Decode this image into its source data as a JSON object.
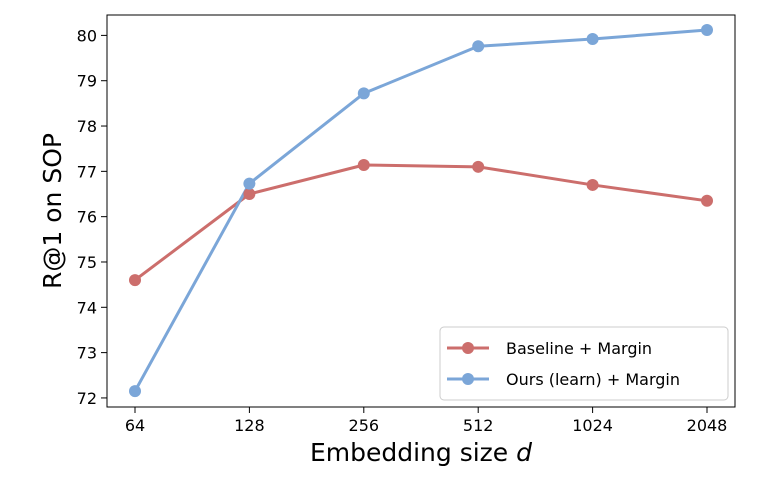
{
  "chart_data": {
    "type": "line",
    "xlabel": "Embedding size",
    "xlabel_var": "d",
    "ylabel": "R@1 on SOP",
    "x": [
      "64",
      "128",
      "256",
      "512",
      "1024",
      "2048"
    ],
    "ylim": [
      71.8,
      80.45
    ],
    "yticks": [
      "72",
      "73",
      "74",
      "75",
      "76",
      "77",
      "78",
      "79",
      "80"
    ],
    "grid": false,
    "legend_position": "lower right",
    "series": [
      {
        "name": "Baseline + Margin",
        "color": "#cc6e6c",
        "values": [
          74.6,
          76.5,
          77.14,
          77.1,
          76.7,
          76.35
        ]
      },
      {
        "name": "Ours (learn) + Margin",
        "color": "#7ba6d8",
        "values": [
          72.15,
          76.73,
          78.72,
          79.76,
          79.92,
          80.12
        ]
      }
    ]
  }
}
